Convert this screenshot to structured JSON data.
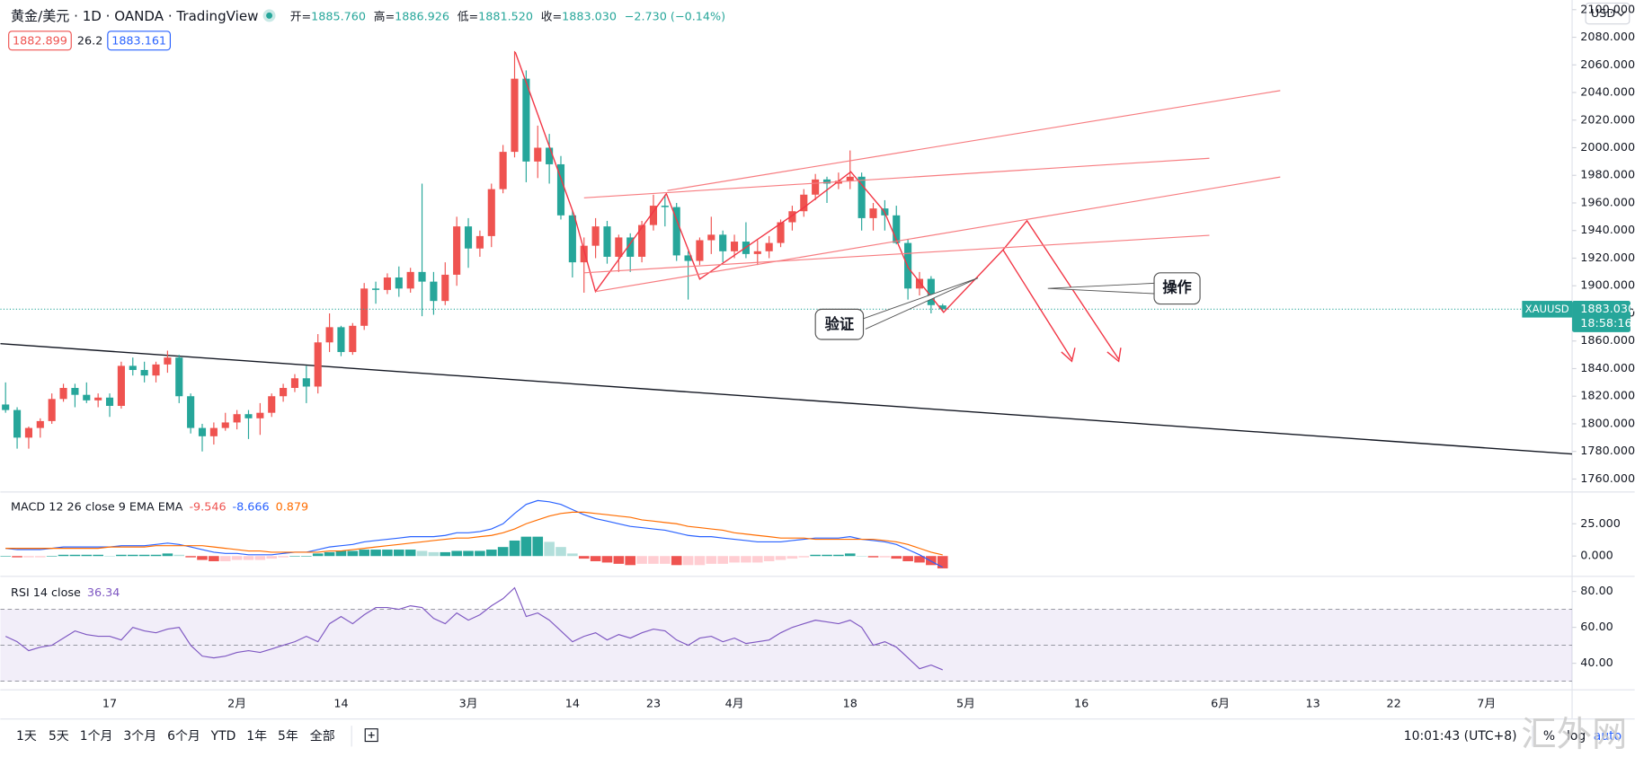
{
  "header": {
    "symbol": "黄金/美元 · 1D · OANDA · TradingView",
    "ohlc": [
      {
        "key": "开=",
        "value": "1885.760"
      },
      {
        "key": "高=",
        "value": "1886.926"
      },
      {
        "key": "低=",
        "value": "1881.520"
      },
      {
        "key": "收=",
        "value": "1883.030"
      }
    ],
    "change": "−2.730 (−0.14%)",
    "quote": {
      "bid": "1882.899",
      "spread": "26.2",
      "ask": "1883.161"
    },
    "currency": "USD"
  },
  "chart_data": [
    {
      "type": "candlestick",
      "up_color": "#ef5350",
      "down_color": "#26a69a",
      "grid": false,
      "xlim": [
        -0.45,
        135.41
      ],
      "ylim": [
        1751,
        2107
      ],
      "yticks": [
        {
          "value": 1760,
          "label": "1760.000"
        },
        {
          "value": 1780,
          "label": "1780.000"
        },
        {
          "value": 1800,
          "label": "1800.000"
        },
        {
          "value": 1820,
          "label": "1820.000"
        },
        {
          "value": 1840,
          "label": "1840.000"
        },
        {
          "value": 1860,
          "label": "1860.000"
        },
        {
          "value": 1880,
          "label": "1880.000"
        },
        {
          "value": 1900,
          "label": "1900.000"
        },
        {
          "value": 1920,
          "label": "1920.000"
        },
        {
          "value": 1940,
          "label": "1940.000"
        },
        {
          "value": 1960,
          "label": "1960.000"
        },
        {
          "value": 1980,
          "label": "1980.000"
        },
        {
          "value": 2000,
          "label": "2000.000"
        },
        {
          "value": 2020,
          "label": "2020.000"
        },
        {
          "value": 2040,
          "label": "2040.000"
        },
        {
          "value": 2060,
          "label": "2060.000"
        },
        {
          "value": 2080,
          "label": "2080.000"
        },
        {
          "value": 2100,
          "label": "2100.000"
        }
      ],
      "candles": [
        [
          1814,
          1830,
          1808,
          1810
        ],
        [
          1810,
          1812,
          1782,
          1790
        ],
        [
          1790,
          1798,
          1782,
          1797
        ],
        [
          1797,
          1804,
          1790,
          1802
        ],
        [
          1802,
          1822,
          1800,
          1818
        ],
        [
          1818,
          1829,
          1816,
          1826
        ],
        [
          1826,
          1829,
          1812,
          1821
        ],
        [
          1821,
          1830,
          1815,
          1817
        ],
        [
          1817,
          1822,
          1812,
          1819
        ],
        [
          1819,
          1822,
          1805,
          1813
        ],
        [
          1813,
          1845,
          1811,
          1842
        ],
        [
          1842,
          1848,
          1835,
          1839
        ],
        [
          1839,
          1845,
          1830,
          1835
        ],
        [
          1835,
          1845,
          1830,
          1843
        ],
        [
          1843,
          1853,
          1837,
          1848
        ],
        [
          1848,
          1850,
          1815,
          1820
        ],
        [
          1820,
          1822,
          1793,
          1797
        ],
        [
          1797,
          1800,
          1780,
          1791
        ],
        [
          1791,
          1801,
          1785,
          1797
        ],
        [
          1797,
          1808,
          1795,
          1801
        ],
        [
          1801,
          1810,
          1796,
          1807
        ],
        [
          1807,
          1810,
          1789,
          1804
        ],
        [
          1804,
          1815,
          1792,
          1808
        ],
        [
          1808,
          1822,
          1805,
          1820
        ],
        [
          1820,
          1829,
          1816,
          1826
        ],
        [
          1826,
          1836,
          1823,
          1833
        ],
        [
          1833,
          1842,
          1815,
          1827
        ],
        [
          1827,
          1865,
          1822,
          1859
        ],
        [
          1859,
          1880,
          1852,
          1870
        ],
        [
          1870,
          1871,
          1849,
          1852
        ],
        [
          1852,
          1873,
          1850,
          1871
        ],
        [
          1871,
          1902,
          1868,
          1898
        ],
        [
          1898,
          1903,
          1887,
          1897
        ],
        [
          1897,
          1909,
          1894,
          1906
        ],
        [
          1906,
          1914,
          1892,
          1898
        ],
        [
          1898,
          1913,
          1895,
          1910
        ],
        [
          1910,
          1974,
          1878,
          1903
        ],
        [
          1903,
          1910,
          1879,
          1889
        ],
        [
          1889,
          1917,
          1886,
          1908
        ],
        [
          1908,
          1950,
          1900,
          1943
        ],
        [
          1943,
          1949,
          1913,
          1927
        ],
        [
          1927,
          1940,
          1921,
          1936
        ],
        [
          1936,
          1974,
          1928,
          1970
        ],
        [
          1970,
          2002,
          1967,
          1997
        ],
        [
          1997,
          2070,
          1993,
          2050
        ],
        [
          2050,
          2056,
          1975,
          1990
        ],
        [
          1990,
          2016,
          1978,
          2000
        ],
        [
          2000,
          2010,
          1974,
          1988
        ],
        [
          1988,
          1994,
          1948,
          1951
        ],
        [
          1951,
          1955,
          1906,
          1917
        ],
        [
          1917,
          1935,
          1895,
          1929
        ],
        [
          1929,
          1949,
          1920,
          1943
        ],
        [
          1943,
          1947,
          1916,
          1921
        ],
        [
          1921,
          1937,
          1910,
          1935
        ],
        [
          1935,
          1938,
          1910,
          1921
        ],
        [
          1921,
          1947,
          1917,
          1944
        ],
        [
          1944,
          1966,
          1940,
          1958
        ],
        [
          1958,
          1966,
          1943,
          1957
        ],
        [
          1957,
          1960,
          1918,
          1922
        ],
        [
          1922,
          1925,
          1890,
          1918
        ],
        [
          1918,
          1935,
          1915,
          1933
        ],
        [
          1933,
          1950,
          1923,
          1937
        ],
        [
          1937,
          1940,
          1917,
          1925
        ],
        [
          1925,
          1937,
          1920,
          1932
        ],
        [
          1932,
          1946,
          1920,
          1923
        ],
        [
          1923,
          1933,
          1915,
          1925
        ],
        [
          1925,
          1936,
          1920,
          1931
        ],
        [
          1931,
          1948,
          1928,
          1946
        ],
        [
          1946,
          1958,
          1940,
          1954
        ],
        [
          1954,
          1970,
          1950,
          1966
        ],
        [
          1966,
          1981,
          1962,
          1977
        ],
        [
          1977,
          1979,
          1960,
          1974
        ],
        [
          1974,
          1982,
          1970,
          1976
        ],
        [
          1976,
          1998,
          1970,
          1979
        ],
        [
          1979,
          1982,
          1940,
          1949
        ],
        [
          1949,
          1960,
          1940,
          1956
        ],
        [
          1956,
          1962,
          1940,
          1951
        ],
        [
          1951,
          1958,
          1930,
          1931
        ],
        [
          1931,
          1934,
          1890,
          1898
        ],
        [
          1898,
          1910,
          1893,
          1905
        ],
        [
          1905,
          1907,
          1880,
          1886
        ],
        [
          1885.76,
          1886.926,
          1881.52,
          1883.03
        ]
      ],
      "price_tag": {
        "symbol": "XAUUSD",
        "price": "1883.030",
        "countdown": "18:58:16"
      },
      "annotations": [
        "验证",
        "操作"
      ]
    },
    {
      "type": "macd",
      "title": "MACD 12 26 close 9 EMA EMA",
      "xlim": [
        -0.45,
        135.41
      ],
      "ylim": [
        -15.3,
        49.2
      ],
      "yticks": [
        {
          "value": 0,
          "label": "0.000"
        },
        {
          "value": 25,
          "label": "25.000"
        }
      ],
      "series": [
        {
          "style": "histogram",
          "colors": [
            "#26a69a",
            "#b2dfdb",
            "#ffcdd2",
            "#ef5350"
          ],
          "label_color": "#ef5350",
          "last_label": "-9.546",
          "values": [
            0,
            -1,
            -1,
            -1,
            0,
            1,
            1,
            1,
            1,
            0,
            1,
            1,
            1,
            1,
            2,
            1,
            -1,
            -3,
            -4,
            -4,
            -3,
            -3,
            -3,
            -2,
            -1,
            0,
            0,
            2,
            3,
            4,
            4,
            5,
            5,
            5,
            5,
            5,
            4,
            3,
            3,
            4,
            4,
            4,
            5,
            7,
            12,
            15,
            15,
            11,
            7,
            2,
            -2,
            -4,
            -5,
            -6,
            -7,
            -6,
            -6,
            -6,
            -7,
            -7,
            -7,
            -6,
            -6,
            -5,
            -5,
            -5,
            -4,
            -3,
            -2,
            -1,
            1,
            1,
            1,
            2,
            0,
            -1,
            -1,
            -2,
            -4,
            -5,
            -7,
            -9.546
          ]
        },
        {
          "style": "line",
          "color": "#2962ff",
          "last_label": "-8.666",
          "values": [
            6,
            5,
            5,
            5,
            6,
            7,
            7,
            7,
            7,
            7,
            8,
            8,
            8,
            9,
            10,
            9,
            7,
            5,
            3,
            2,
            2,
            1,
            1,
            1,
            2,
            3,
            3,
            5,
            7,
            8,
            9,
            11,
            12,
            13,
            14,
            15,
            15,
            15,
            16,
            18,
            18,
            19,
            21,
            25,
            33,
            40,
            43,
            42,
            40,
            36,
            32,
            29,
            27,
            25,
            23,
            22,
            21,
            20,
            18,
            16,
            15,
            15,
            14,
            13,
            12,
            11,
            11,
            11,
            12,
            13,
            14,
            14,
            14,
            15,
            13,
            12,
            11,
            9,
            5,
            1,
            -4,
            -8.666
          ]
        },
        {
          "style": "line",
          "color": "#ff6d00",
          "last_label": "0.879",
          "values": [
            6,
            6,
            6,
            6,
            6,
            6,
            6,
            6,
            6,
            7,
            7,
            7,
            7,
            8,
            8,
            8,
            8,
            8,
            7,
            6,
            5,
            4,
            4,
            3,
            3,
            3,
            3,
            3,
            4,
            4,
            5,
            6,
            7,
            8,
            9,
            10,
            11,
            12,
            13,
            14,
            14,
            15,
            16,
            18,
            21,
            25,
            28,
            31,
            33,
            34,
            34,
            33,
            32,
            31,
            30,
            28,
            27,
            26,
            25,
            23,
            22,
            21,
            20,
            18,
            17,
            16,
            15,
            14,
            14,
            14,
            13,
            13,
            13,
            13,
            13,
            13,
            12,
            11,
            9,
            6,
            3,
            0.879
          ]
        }
      ]
    },
    {
      "type": "rsi",
      "title": "RSI 14 close",
      "xlim": [
        -0.45,
        135.41
      ],
      "ylim": [
        25.5,
        88.1
      ],
      "yticks": [
        {
          "value": 40,
          "label": "40.00"
        },
        {
          "value": 60,
          "label": "60.00"
        },
        {
          "value": 80,
          "label": "80.00"
        }
      ],
      "band": [
        30,
        70
      ],
      "midline": 50,
      "band_color": "rgba(126,87,194,0.1)",
      "xticks": [
        {
          "value": 9,
          "label": "17"
        },
        {
          "value": 20,
          "label": "2月"
        },
        {
          "value": 29,
          "label": "14"
        },
        {
          "value": 40,
          "label": "3月"
        },
        {
          "value": 49,
          "label": "14"
        },
        {
          "value": 56,
          "label": "23"
        },
        {
          "value": 63,
          "label": "4月"
        },
        {
          "value": 73,
          "label": "18"
        },
        {
          "value": 83,
          "label": "5月"
        },
        {
          "value": 93,
          "label": "16"
        },
        {
          "value": 105,
          "label": "6月"
        },
        {
          "value": 113,
          "label": "13"
        },
        {
          "value": 120,
          "label": "22"
        },
        {
          "value": 128,
          "label": "7月"
        }
      ],
      "series": [
        {
          "color": "#7e57c2",
          "last_label": "36.34",
          "values": [
            55,
            52,
            47,
            49,
            50,
            54,
            58,
            56,
            55,
            55,
            53,
            60,
            58,
            57,
            59,
            60,
            50,
            44,
            43,
            44,
            46,
            47,
            46,
            48,
            50,
            52,
            55,
            52,
            62,
            66,
            62,
            67,
            71,
            71,
            70,
            72,
            71,
            65,
            62,
            68,
            64,
            67,
            72,
            76,
            82,
            66,
            68,
            64,
            58,
            52,
            55,
            57,
            53,
            56,
            54,
            57,
            59,
            58,
            53,
            50,
            54,
            55,
            52,
            54,
            51,
            52,
            53,
            57,
            60,
            62,
            64,
            63,
            62,
            64,
            60,
            50,
            52,
            49,
            43,
            37,
            39,
            36.34
          ]
        }
      ]
    }
  ],
  "toolbar": {
    "ranges": [
      "1天",
      "5天",
      "1个月",
      "3个月",
      "6个月",
      "YTD",
      "1年",
      "5年",
      "全部"
    ],
    "clock": "10:01:43 (UTC+8)",
    "scale_buttons": [
      "%",
      "log",
      "auto"
    ]
  },
  "watermark": "汇外网"
}
